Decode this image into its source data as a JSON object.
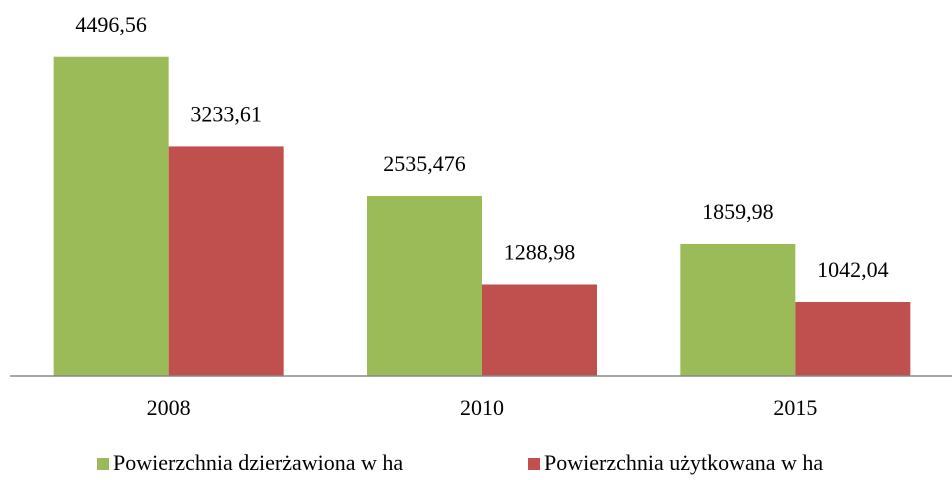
{
  "chart_data": {
    "type": "bar",
    "categories": [
      "2008",
      "2010",
      "2015"
    ],
    "series": [
      {
        "name": "Powierzchnia dzierżawiona w ha",
        "color": "#9bbb59",
        "values": [
          4496.56,
          2535.476,
          1859.98
        ],
        "value_labels": [
          "4496,56",
          "2535,476",
          "1859,98"
        ]
      },
      {
        "name": "Powierzchnia użytkowana w ha",
        "color": "#c0504d",
        "values": [
          3233.61,
          1288.98,
          1042.04
        ],
        "value_labels": [
          "3233,61",
          "1288,98",
          "1042,04"
        ]
      }
    ],
    "ylim": [
      0,
      5000
    ],
    "legend": "bottom"
  }
}
